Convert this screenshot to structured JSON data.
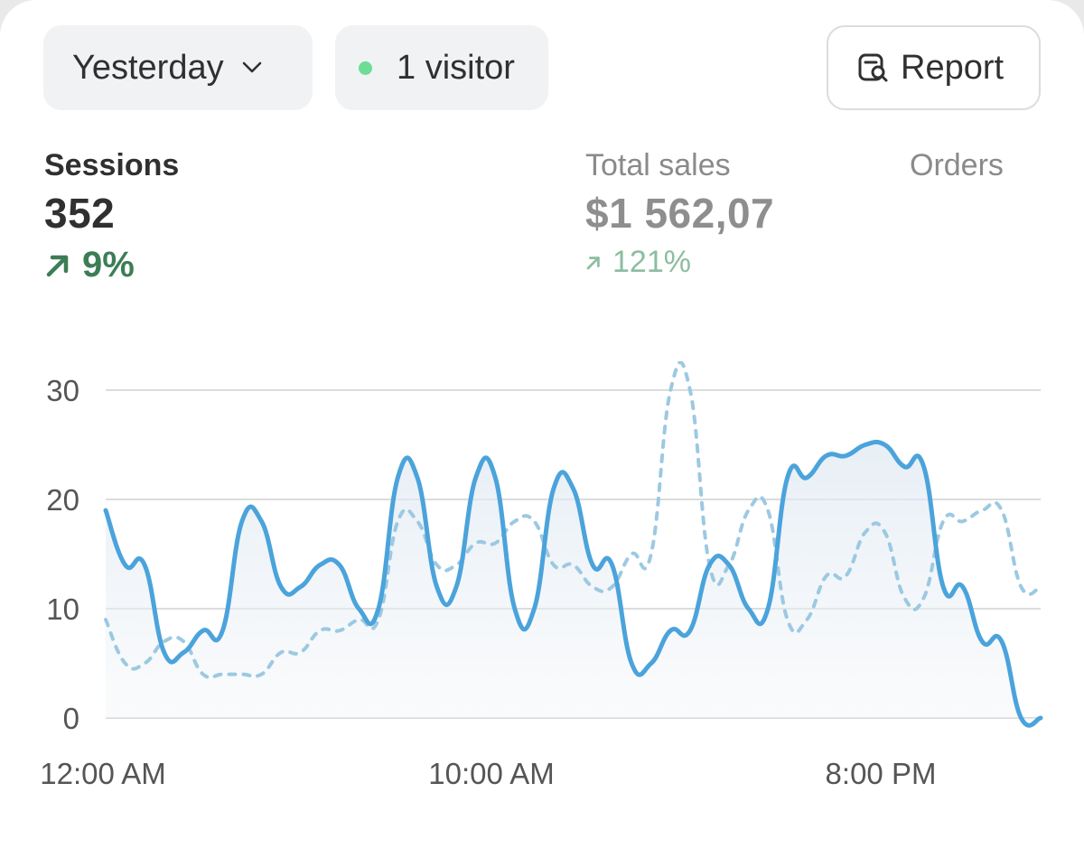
{
  "toolbar": {
    "period_label": "Yesterday",
    "visitors_label": "1 visitor",
    "report_label": "Report"
  },
  "metrics": {
    "sessions": {
      "label": "Sessions",
      "value": "352",
      "change": "9%"
    },
    "total_sales": {
      "label": "Total sales",
      "value": "$1 562,07",
      "change": "121%"
    },
    "orders": {
      "label": "Orders"
    }
  },
  "colors": {
    "accent_green": "#3c7d56",
    "current_series": "#4ba3db",
    "comparison_series": "#9cc9e2",
    "online_dot": "#6ddc94"
  },
  "chart_data": {
    "type": "line",
    "ylim": [
      0,
      30
    ],
    "y_ticks": [
      "0",
      "10",
      "20",
      "30"
    ],
    "x_tick_labels": [
      "12:00 AM",
      "10:00 AM",
      "8:00 PM"
    ],
    "grid": true,
    "x": [
      "00:00",
      "00:30",
      "01:00",
      "01:30",
      "02:00",
      "02:30",
      "03:00",
      "03:30",
      "04:00",
      "04:30",
      "05:00",
      "05:30",
      "06:00",
      "06:30",
      "07:00",
      "07:30",
      "08:00",
      "08:30",
      "09:00",
      "09:30",
      "10:00",
      "10:30",
      "11:00",
      "11:30",
      "12:00",
      "12:30",
      "13:00",
      "13:30",
      "14:00",
      "14:30",
      "15:00",
      "15:30",
      "16:00",
      "16:30",
      "17:00",
      "17:30",
      "18:00",
      "18:30",
      "19:00",
      "19:30",
      "20:00",
      "20:30",
      "21:00",
      "21:30",
      "22:00",
      "22:30",
      "23:00",
      "23:30",
      "24:00"
    ],
    "series": [
      {
        "style": "solid",
        "values": [
          19,
          14,
          14,
          6,
          6,
          8,
          8,
          18,
          18,
          12,
          12,
          14,
          14,
          10,
          10,
          22,
          22,
          12,
          12,
          22,
          22,
          10,
          10,
          21,
          21,
          14,
          14,
          5,
          5,
          8,
          8,
          14,
          14,
          10,
          10,
          22,
          22,
          24,
          24,
          25,
          25,
          23,
          23,
          12,
          12,
          7,
          7,
          0,
          0
        ]
      },
      {
        "style": "dotted",
        "values": [
          9,
          5,
          5,
          7,
          7,
          4,
          4,
          4,
          4,
          6,
          6,
          8,
          8,
          9,
          9,
          18,
          18,
          14,
          14,
          16,
          16,
          18,
          18,
          14,
          14,
          12,
          12,
          15,
          15,
          30,
          30,
          14,
          14,
          19,
          19,
          9,
          9,
          13,
          13,
          17,
          17,
          11,
          11,
          18,
          18,
          19,
          19,
          12,
          12
        ]
      }
    ]
  }
}
